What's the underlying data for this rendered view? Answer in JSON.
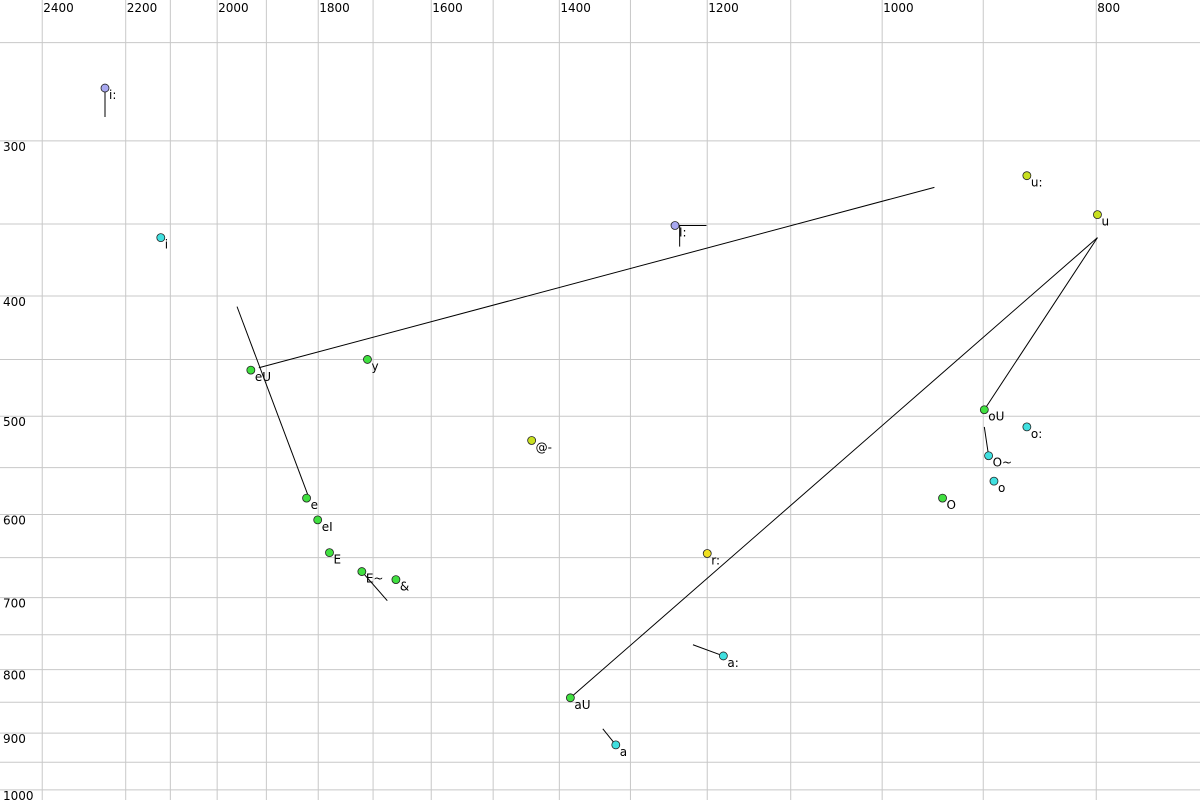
{
  "chart_data": {
    "type": "scatter",
    "xscale": "log",
    "yscale": "log",
    "xlim": [
      2508,
      718
    ],
    "ylim": [
      231,
      1019
    ],
    "xticks": [
      2400,
      2200,
      2000,
      1800,
      1600,
      1400,
      1200,
      1000,
      800
    ],
    "xminor": [
      2100,
      1900,
      1700,
      1500,
      1300,
      1100,
      900
    ],
    "yticks": [
      300,
      400,
      500,
      600,
      700,
      800,
      900,
      1000
    ],
    "yminor": [
      250,
      350,
      450,
      550,
      650,
      750,
      850,
      950
    ],
    "grid": true,
    "points": [
      {
        "label": "i:",
        "x": 2248,
        "y": 272,
        "color": "#a8a8f0"
      },
      {
        "label": "i",
        "x": 2121,
        "y": 359,
        "color": "#40e0e0"
      },
      {
        "label": "eU",
        "x": 1931,
        "y": 459,
        "color": "#40e040"
      },
      {
        "label": "y",
        "x": 1710,
        "y": 450,
        "color": "#40e040"
      },
      {
        "label": "@-",
        "x": 1441,
        "y": 523,
        "color": "#c8e020"
      },
      {
        "label": "I:",
        "x": 1241,
        "y": 351,
        "color": "#a8a8f0"
      },
      {
        "label": "u:",
        "x": 860,
        "y": 320,
        "color": "#c8e020"
      },
      {
        "label": "u",
        "x": 799,
        "y": 344,
        "color": "#c8e020"
      },
      {
        "label": "oU",
        "x": 899,
        "y": 494,
        "color": "#40e040"
      },
      {
        "label": "o:",
        "x": 860,
        "y": 510,
        "color": "#40e0e0"
      },
      {
        "label": "O~",
        "x": 895,
        "y": 538,
        "color": "#40e0e0"
      },
      {
        "label": "o",
        "x": 890,
        "y": 564,
        "color": "#40e0e0"
      },
      {
        "label": "O",
        "x": 939,
        "y": 582,
        "color": "#40e040"
      },
      {
        "label": "e",
        "x": 1822,
        "y": 582,
        "color": "#40e040"
      },
      {
        "label": "eI",
        "x": 1801,
        "y": 606,
        "color": "#40e040"
      },
      {
        "label": "E",
        "x": 1779,
        "y": 644,
        "color": "#40e040"
      },
      {
        "label": "E~",
        "x": 1720,
        "y": 667,
        "color": "#40e040"
      },
      {
        "label": "&",
        "x": 1660,
        "y": 677,
        "color": "#40e040"
      },
      {
        "label": "r:",
        "x": 1200,
        "y": 645,
        "color": "#f0e020"
      },
      {
        "label": "a:",
        "x": 1180,
        "y": 780,
        "color": "#40e0e0"
      },
      {
        "label": "aU",
        "x": 1384,
        "y": 843,
        "color": "#40e040"
      },
      {
        "label": "a",
        "x": 1320,
        "y": 920,
        "color": "#40e0e0"
      }
    ],
    "segments": [
      {
        "x": [
          1915,
          947
        ],
        "y": [
          457,
          327
        ]
      },
      {
        "x": [
          1959,
          1816
        ],
        "y": [
          408,
          584
        ]
      },
      {
        "x": [
          1384,
          799
        ],
        "y": [
          843,
          359
        ]
      },
      {
        "x": [
          899,
          799
        ],
        "y": [
          494,
          359
        ]
      },
      {
        "x": [
          899,
          895
        ],
        "y": [
          510,
          538
        ]
      },
      {
        "x": [
          2248,
          2248
        ],
        "y": [
          272,
          287
        ]
      },
      {
        "x": [
          1720,
          1675
        ],
        "y": [
          667,
          704
        ]
      },
      {
        "x": [
          1180,
          1218
        ],
        "y": [
          780,
          764
        ]
      },
      {
        "x": [
          1320,
          1338
        ],
        "y": [
          920,
          893
        ]
      },
      {
        "x": [
          1241,
          1201
        ],
        "y": [
          351,
          351
        ]
      },
      {
        "x": [
          1235,
          1235
        ],
        "y": [
          351,
          365
        ]
      }
    ]
  }
}
